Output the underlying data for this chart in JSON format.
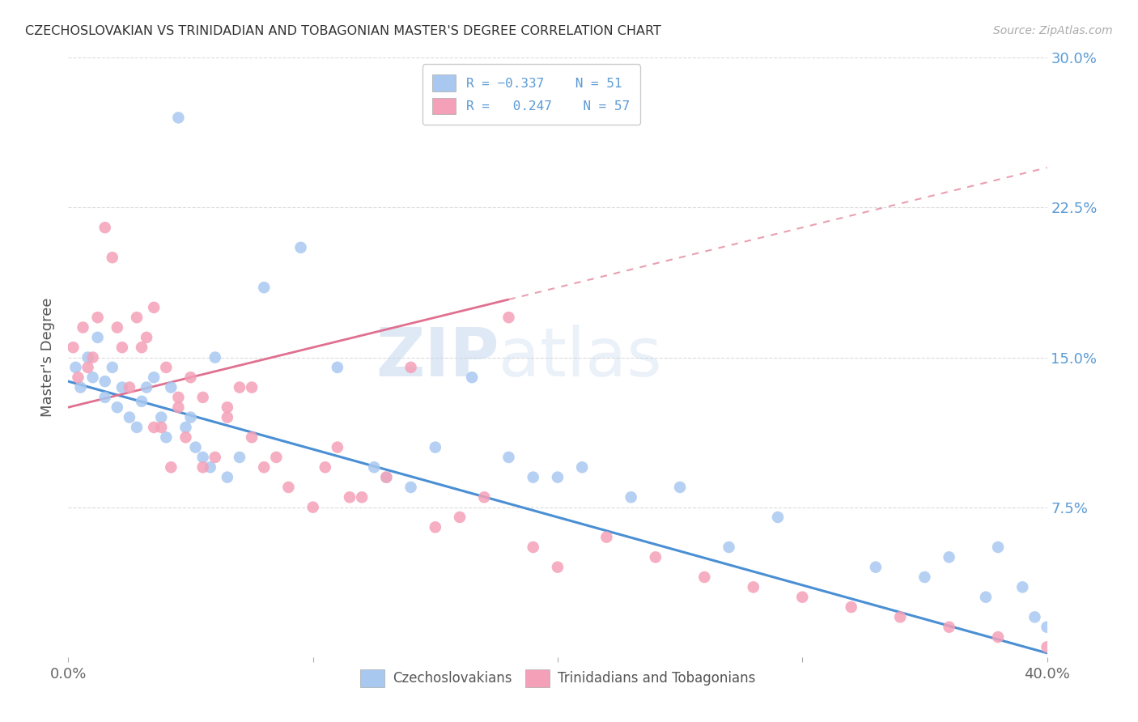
{
  "title": "CZECHOSLOVAKIAN VS TRINIDADIAN AND TOBAGONIAN MASTER'S DEGREE CORRELATION CHART",
  "source": "Source: ZipAtlas.com",
  "ylabel": "Master's Degree",
  "x_range": [
    0,
    40
  ],
  "y_range": [
    0,
    30
  ],
  "color_blue": "#A8C8F0",
  "color_pink": "#F4A0B8",
  "color_blue_line": "#4A8FD4",
  "color_pink_line": "#E07090",
  "watermark_zip": "ZIP",
  "watermark_atlas": "atlas",
  "blue_scatter_x": [
    0.3,
    0.5,
    0.8,
    1.0,
    1.2,
    1.5,
    1.5,
    1.8,
    2.0,
    2.2,
    2.5,
    2.8,
    3.0,
    3.2,
    3.5,
    3.8,
    4.0,
    4.2,
    4.5,
    4.8,
    5.0,
    5.2,
    5.5,
    5.8,
    6.0,
    6.5,
    7.0,
    8.0,
    9.5,
    11.0,
    12.5,
    13.0,
    14.0,
    15.0,
    16.5,
    18.0,
    19.0,
    20.0,
    21.0,
    23.0,
    25.0,
    27.0,
    29.0,
    33.0,
    35.0,
    36.0,
    37.5,
    39.0,
    39.5,
    40.0,
    38.0
  ],
  "blue_scatter_y": [
    14.5,
    13.5,
    15.0,
    14.0,
    16.0,
    13.8,
    13.0,
    14.5,
    12.5,
    13.5,
    12.0,
    11.5,
    12.8,
    13.5,
    14.0,
    12.0,
    11.0,
    13.5,
    27.0,
    11.5,
    12.0,
    10.5,
    10.0,
    9.5,
    15.0,
    9.0,
    10.0,
    18.5,
    20.5,
    14.5,
    9.5,
    9.0,
    8.5,
    10.5,
    14.0,
    10.0,
    9.0,
    9.0,
    9.5,
    8.0,
    8.5,
    5.5,
    7.0,
    4.5,
    4.0,
    5.0,
    3.0,
    3.5,
    2.0,
    1.5,
    5.5
  ],
  "pink_scatter_x": [
    0.2,
    0.4,
    0.6,
    0.8,
    1.0,
    1.2,
    1.5,
    1.8,
    2.0,
    2.2,
    2.5,
    2.8,
    3.0,
    3.2,
    3.5,
    3.8,
    4.0,
    4.2,
    4.5,
    4.8,
    5.0,
    5.5,
    6.0,
    6.5,
    7.0,
    7.5,
    8.0,
    9.0,
    10.0,
    11.0,
    12.0,
    13.0,
    14.0,
    15.0,
    16.0,
    17.0,
    18.0,
    19.0,
    20.0,
    22.0,
    24.0,
    26.0,
    28.0,
    30.0,
    32.0,
    34.0,
    36.0,
    38.0,
    40.0,
    5.5,
    6.5,
    7.5,
    8.5,
    10.5,
    11.5,
    4.5,
    3.5
  ],
  "pink_scatter_y": [
    15.5,
    14.0,
    16.5,
    14.5,
    15.0,
    17.0,
    21.5,
    20.0,
    16.5,
    15.5,
    13.5,
    17.0,
    15.5,
    16.0,
    17.5,
    11.5,
    14.5,
    9.5,
    13.0,
    11.0,
    14.0,
    9.5,
    10.0,
    12.5,
    13.5,
    11.0,
    9.5,
    8.5,
    7.5,
    10.5,
    8.0,
    9.0,
    14.5,
    6.5,
    7.0,
    8.0,
    17.0,
    5.5,
    4.5,
    6.0,
    5.0,
    4.0,
    3.5,
    3.0,
    2.5,
    2.0,
    1.5,
    1.0,
    0.5,
    13.0,
    12.0,
    13.5,
    10.0,
    9.5,
    8.0,
    12.5,
    11.5
  ],
  "blue_line_x": [
    0,
    40
  ],
  "blue_line_y": [
    13.8,
    0.2
  ],
  "pink_line_x": [
    0,
    40
  ],
  "pink_line_y": [
    12.5,
    24.5
  ]
}
